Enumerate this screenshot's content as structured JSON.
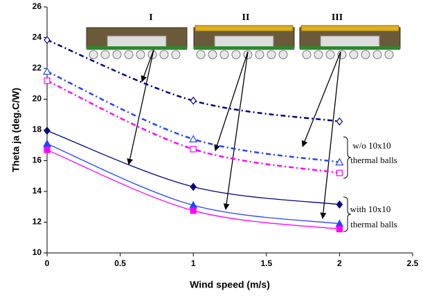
{
  "chart_data": {
    "type": "line",
    "x_label": "Wind speed (m/s)",
    "y_label": "Theta ja (deg.C/W)",
    "x": [
      0,
      1,
      2
    ],
    "series": [
      {
        "color": "#000080",
        "marker": "diamond",
        "filled": false,
        "dashed": true,
        "values": [
          23.85,
          19.9,
          18.55
        ]
      },
      {
        "color": "#2244ff",
        "marker": "triangle",
        "filled": false,
        "dashed": true,
        "values": [
          21.8,
          17.4,
          15.9
        ]
      },
      {
        "color": "#ff00ff",
        "marker": "square",
        "filled": false,
        "dashed": true,
        "values": [
          21.2,
          16.75,
          15.2
        ]
      },
      {
        "color": "#000080",
        "marker": "diamond",
        "filled": true,
        "dashed": false,
        "values": [
          17.95,
          14.3,
          13.15
        ]
      },
      {
        "color": "#2244ff",
        "marker": "triangle",
        "filled": true,
        "dashed": false,
        "values": [
          17.1,
          13.1,
          11.9
        ]
      },
      {
        "color": "#ff00ff",
        "marker": "square",
        "filled": true,
        "dashed": false,
        "values": [
          16.7,
          12.75,
          11.55
        ]
      }
    ],
    "xlim": [
      0,
      2.5
    ],
    "xticks": [
      0,
      0.5,
      1,
      1.5,
      2,
      2.5
    ],
    "ylim": [
      10,
      26
    ],
    "yticks": [
      10,
      12,
      14,
      16,
      18,
      20,
      22,
      24,
      26
    ],
    "grid": false,
    "package_labels": [
      "I",
      "II",
      "III"
    ],
    "annotations": [
      [
        "w/o 10x10",
        "thermal balls"
      ],
      [
        "with 10x10",
        "thermal balls"
      ]
    ]
  }
}
